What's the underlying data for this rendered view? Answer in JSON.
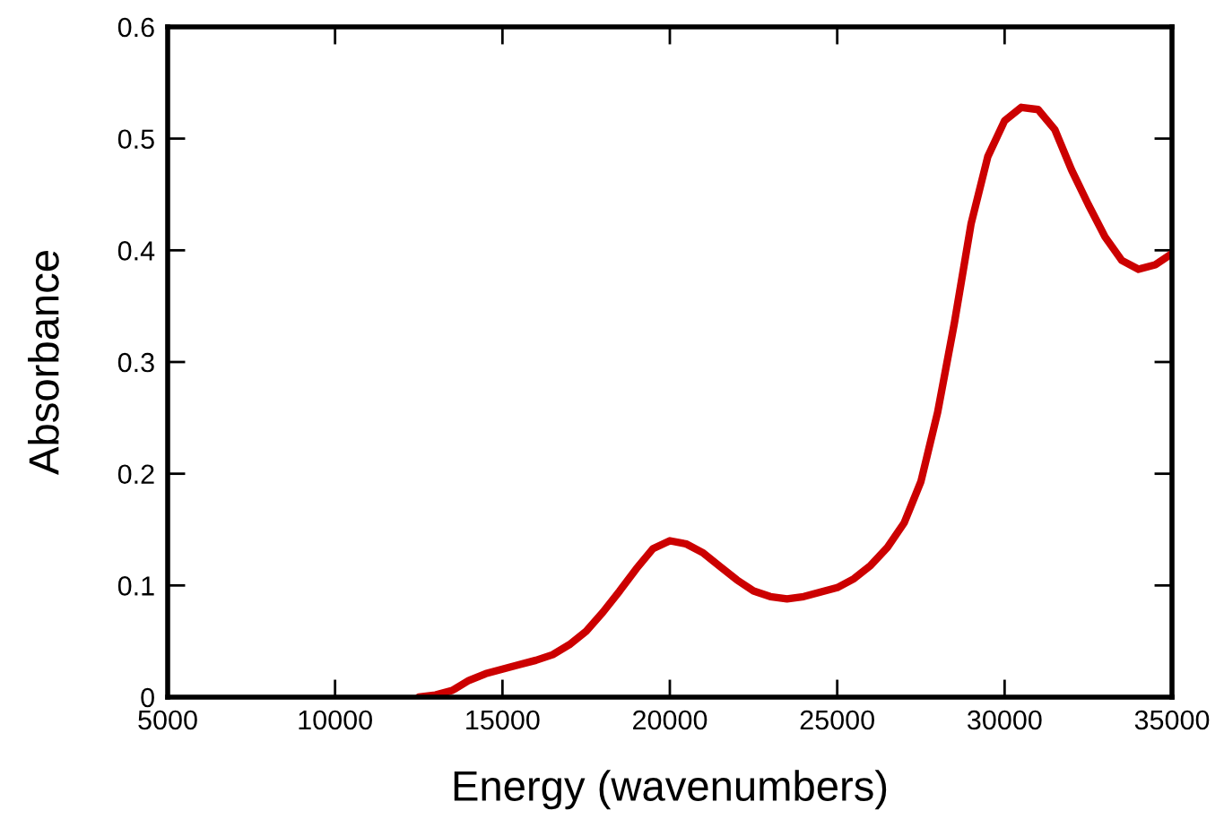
{
  "chart_data": {
    "type": "line",
    "xlabel": "Energy (wavenumbers)",
    "ylabel": "Absorbance",
    "xlim": [
      5000,
      35000
    ],
    "ylim": [
      0,
      0.6
    ],
    "xticks": [
      5000,
      10000,
      15000,
      20000,
      25000,
      30000,
      35000
    ],
    "yticks": [
      0,
      0.1,
      0.2,
      0.3,
      0.4,
      0.5,
      0.6
    ],
    "grid": false,
    "marker": "none",
    "line_style": "solid",
    "series": [
      {
        "color": "#cc0000",
        "x": [
          12500,
          13000,
          13500,
          14000,
          14500,
          15000,
          15500,
          16000,
          16500,
          17000,
          17500,
          18000,
          18500,
          19000,
          19500,
          20000,
          20500,
          21000,
          21500,
          22000,
          22500,
          23000,
          23500,
          24000,
          24500,
          25000,
          25500,
          26000,
          26500,
          27000,
          27500,
          28000,
          28500,
          29000,
          29500,
          30000,
          30500,
          31000,
          31500,
          32000,
          32500,
          33000,
          33500,
          34000,
          34500,
          35000
        ],
        "values": [
          0,
          0.002,
          0.006,
          0.015,
          0.021,
          0.025,
          0.029,
          0.033,
          0.038,
          0.047,
          0.059,
          0.076,
          0.095,
          0.115,
          0.133,
          0.14,
          0.137,
          0.129,
          0.117,
          0.105,
          0.095,
          0.09,
          0.088,
          0.09,
          0.094,
          0.098,
          0.106,
          0.118,
          0.134,
          0.156,
          0.193,
          0.255,
          0.335,
          0.424,
          0.484,
          0.516,
          0.528,
          0.526,
          0.508,
          0.472,
          0.441,
          0.412,
          0.391,
          0.383,
          0.387,
          0.397
        ]
      }
    ]
  }
}
